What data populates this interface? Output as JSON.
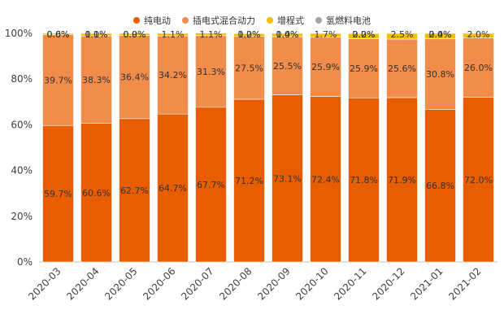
{
  "chart_data": {
    "type": "bar",
    "stacked": true,
    "categories": [
      "2020-03",
      "2020-04",
      "2020-05",
      "2020-06",
      "2020-07",
      "2020-08",
      "2020-09",
      "2020-10",
      "2020-11",
      "2020-12",
      "2021-01",
      "2021-02"
    ],
    "series": [
      {
        "name": "纯电动",
        "color": "#E85D00",
        "values": [
          59.7,
          60.6,
          62.7,
          64.7,
          67.7,
          71.2,
          73.1,
          72.4,
          71.8,
          71.9,
          66.8,
          72.0
        ],
        "labels": [
          "59.7%",
          "60.6%",
          "62.7%",
          "64.7%",
          "67.7%",
          "71.2%",
          "73.1%",
          "72.4%",
          "71.8%",
          "71.9%",
          "66.8%",
          "72.0%"
        ]
      },
      {
        "name": "插电式混合动力",
        "color": "#F28C4A",
        "values": [
          39.7,
          38.3,
          36.4,
          34.2,
          31.3,
          27.5,
          25.5,
          25.9,
          25.9,
          25.6,
          30.8,
          26.0
        ],
        "labels": [
          "39.7%",
          "38.3%",
          "36.4%",
          "34.2%",
          "31.3%",
          "27.5%",
          "25.5%",
          "25.9%",
          "25.9%",
          "25.6%",
          "30.8%",
          "26.0%"
        ]
      },
      {
        "name": "增程式",
        "color": "#F6BE00",
        "values": [
          0.6,
          1.1,
          0.9,
          1.1,
          1.1,
          1.2,
          1.4,
          1.7,
          2.2,
          2.5,
          2.4,
          2.0
        ],
        "labels": [
          "0.6%",
          "1.1%",
          "0.9%",
          "1.1%",
          "1.1%",
          "1.2%",
          "1.4%",
          "1.7%",
          "2.2%",
          "2.5%",
          "2.4%",
          "2.0%"
        ]
      },
      {
        "name": "氢燃料电池",
        "color": "#A5A5A5",
        "values": [
          0.0,
          0.0,
          0.0,
          0.0,
          0.0,
          0.0,
          0.0,
          0.0,
          0.0,
          0.0,
          0.0,
          0.0
        ],
        "labels": [
          "0.0%",
          "0.0%",
          "0.0%",
          "",
          "",
          "0.0%",
          "0.0%",
          "",
          "0.0%",
          "",
          "0.0%",
          ""
        ]
      }
    ],
    "ylim": [
      0,
      100
    ],
    "yticks": [
      0,
      20,
      40,
      60,
      80,
      100
    ],
    "ytick_labels": [
      "0%",
      "20%",
      "40%",
      "60%",
      "80%",
      "100%"
    ],
    "legend_position": "top",
    "grid": false
  }
}
